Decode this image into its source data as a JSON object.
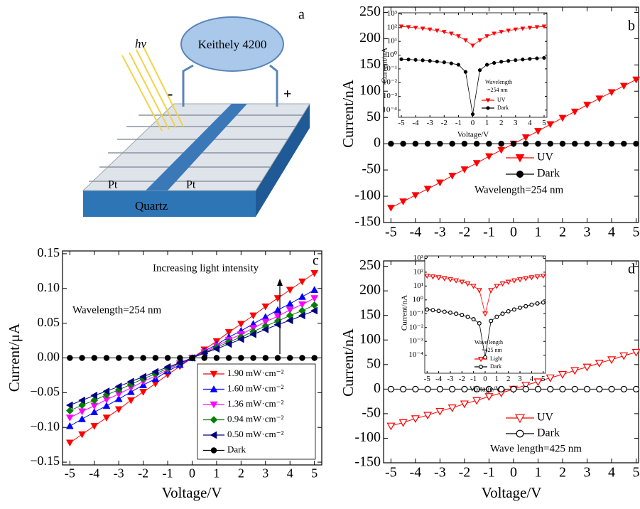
{
  "schematic": {
    "panel_label": "a",
    "light": "hν",
    "instrument": "Keithely 4200",
    "minus": "-",
    "plus": "+",
    "electrode_left": "Pt",
    "electrode_right": "Pt",
    "substrate": "Quartz"
  },
  "chart_data": [
    {
      "type": "line",
      "panel_label": "b",
      "ylabel": "Current/nA",
      "x": [
        -5,
        -4.5,
        -4,
        -3.5,
        -3,
        -2.5,
        -2,
        -1.5,
        -1,
        -0.5,
        0,
        0.5,
        1,
        1.5,
        2,
        2.5,
        3,
        3.5,
        4,
        4.5,
        5
      ],
      "xlim": [
        -5.3,
        5.1
      ],
      "xticks": [
        -5,
        -4,
        -3,
        -2,
        -1,
        0,
        1,
        2,
        3,
        4,
        5
      ],
      "ylim": [
        -150,
        260
      ],
      "yticks": [
        -150,
        -100,
        -50,
        0,
        50,
        100,
        150,
        200,
        250
      ],
      "annotations": [
        "Wavelength=254 nm"
      ],
      "series": [
        {
          "name": "UV",
          "color": "#ff0000",
          "marker": "triangle-down",
          "values": [
            -122,
            -110,
            -98,
            -86,
            -74,
            -61,
            -49,
            -37,
            -24,
            -12,
            0,
            12,
            24,
            37,
            49,
            61,
            74,
            86,
            98,
            110,
            122
          ]
        },
        {
          "name": "Dark",
          "color": "#000000",
          "marker": "circle",
          "values": [
            0,
            0,
            0,
            0,
            0,
            0,
            0,
            0,
            0,
            0,
            0,
            0,
            0,
            0,
            0,
            0,
            0,
            0,
            0,
            0,
            0
          ]
        }
      ]
    },
    {
      "type": "line",
      "xlabel": "Voltage/V",
      "ylabel": "Current/nA",
      "log_y": true,
      "x": [
        -5,
        -4.5,
        -4,
        -3.5,
        -3,
        -2.5,
        -2,
        -1.5,
        -1,
        -0.5,
        0,
        0.5,
        1,
        1.5,
        2,
        2.5,
        3,
        3.5,
        4,
        4.5,
        5
      ],
      "xlim": [
        -5.2,
        5.2
      ],
      "xticks": [
        -5,
        -4,
        -3,
        -2,
        -1,
        0,
        1,
        2,
        3,
        4,
        5
      ],
      "ylim": [
        3e-05,
        1200
      ],
      "yticks": [
        {
          "value": 0.0001,
          "label": "10⁻⁴"
        },
        {
          "value": 0.001,
          "label": "10⁻³"
        },
        {
          "value": 0.01,
          "label": "10⁻²"
        },
        {
          "value": 0.1,
          "label": "10⁻¹"
        },
        {
          "value": 1,
          "label": "10⁰"
        },
        {
          "value": 10,
          "label": "10¹"
        },
        {
          "value": 100,
          "label": "10²"
        },
        {
          "value": 1000,
          "label": "10³"
        }
      ],
      "annotations": [
        "Wavelength",
        "=254 nm"
      ],
      "series": [
        {
          "name": "UV",
          "color": "#ff0000",
          "marker": "triangle-down",
          "values": [
            122,
            110,
            98,
            86,
            74,
            61,
            49,
            37,
            24,
            12,
            5,
            12,
            24,
            37,
            49,
            61,
            74,
            86,
            98,
            110,
            122
          ]
        },
        {
          "name": "Dark",
          "color": "#000000",
          "marker": "circle",
          "values": [
            0.5,
            0.48,
            0.45,
            0.42,
            0.38,
            0.34,
            0.3,
            0.25,
            0.2,
            0.06,
            5e-05,
            0.08,
            0.2,
            0.27,
            0.33,
            0.38,
            0.43,
            0.48,
            0.53,
            0.58,
            0.63
          ]
        }
      ]
    },
    {
      "type": "line",
      "panel_label": "c",
      "xlabel": "Voltage/V",
      "ylabel": "Current/μA",
      "x": [
        -5,
        -4.5,
        -4,
        -3.5,
        -3,
        -2.5,
        -2,
        -1.5,
        -1,
        -0.5,
        0,
        0.5,
        1,
        1.5,
        2,
        2.5,
        3,
        3.5,
        4,
        4.5,
        5
      ],
      "xlim": [
        -5.3,
        5.3
      ],
      "xticks": [
        -5,
        -4,
        -3,
        -2,
        -1,
        0,
        1,
        2,
        3,
        4,
        5
      ],
      "ylim": [
        -0.154,
        0.154
      ],
      "yticks": [
        {
          "value": -0.15,
          "label": "−0.15"
        },
        {
          "value": -0.1,
          "label": "−0.10"
        },
        {
          "value": -0.05,
          "label": "−0.05"
        },
        {
          "value": 0,
          "label": "0.00"
        },
        {
          "value": 0.05,
          "label": "0.05"
        },
        {
          "value": 0.1,
          "label": "0.10"
        },
        {
          "value": 0.15,
          "label": "0.15"
        }
      ],
      "annotations": [
        "Increasing light intensity",
        "Wavelength=254 nm"
      ],
      "series": [
        {
          "name": "1.90 mW·cm⁻²",
          "color": "#ff0000",
          "marker": "triangle-down",
          "values": [
            -0.122,
            -0.11,
            -0.098,
            -0.086,
            -0.074,
            -0.061,
            -0.049,
            -0.037,
            -0.024,
            -0.012,
            0,
            0.012,
            0.024,
            0.037,
            0.049,
            0.061,
            0.074,
            0.086,
            0.098,
            0.11,
            0.122
          ]
        },
        {
          "name": "1.60 mW·cm⁻²",
          "color": "#0000ff",
          "marker": "triangle-up",
          "values": [
            -0.098,
            -0.088,
            -0.078,
            -0.069,
            -0.059,
            -0.049,
            -0.039,
            -0.03,
            -0.019,
            -0.01,
            0,
            0.01,
            0.019,
            0.03,
            0.039,
            0.049,
            0.059,
            0.069,
            0.078,
            0.088,
            0.098
          ]
        },
        {
          "name": "1.36 mW·cm⁻²",
          "color": "#ff00ff",
          "marker": "triangle-down",
          "values": [
            -0.086,
            -0.077,
            -0.069,
            -0.06,
            -0.052,
            -0.043,
            -0.034,
            -0.026,
            -0.017,
            -0.008,
            0,
            0.008,
            0.017,
            0.026,
            0.034,
            0.043,
            0.052,
            0.06,
            0.069,
            0.077,
            0.086
          ]
        },
        {
          "name": "0.94 mW·cm⁻²",
          "color": "#008000",
          "marker": "diamond",
          "values": [
            -0.076,
            -0.068,
            -0.061,
            -0.053,
            -0.046,
            -0.038,
            -0.03,
            -0.023,
            -0.015,
            -0.007,
            0,
            0.007,
            0.015,
            0.023,
            0.03,
            0.038,
            0.046,
            0.053,
            0.061,
            0.068,
            0.076
          ]
        },
        {
          "name": "0.50 mW·cm⁻²",
          "color": "#000080",
          "marker": "triangle-left",
          "values": [
            -0.068,
            -0.061,
            -0.054,
            -0.048,
            -0.041,
            -0.034,
            -0.027,
            -0.02,
            -0.013,
            -0.007,
            0,
            0.007,
            0.013,
            0.02,
            0.027,
            0.034,
            0.041,
            0.048,
            0.054,
            0.061,
            0.068
          ]
        },
        {
          "name": "Dark",
          "color": "#000000",
          "marker": "circle",
          "values": [
            0,
            0,
            0,
            0,
            0,
            0,
            0,
            0,
            0,
            0,
            0,
            0,
            0,
            0,
            0,
            0,
            0,
            0,
            0,
            0,
            0
          ]
        }
      ]
    },
    {
      "type": "line",
      "panel_label": "d",
      "xlabel": "Voltage/V",
      "ylabel": "Current/nA",
      "x": [
        -5,
        -4.5,
        -4,
        -3.5,
        -3,
        -2.5,
        -2,
        -1.5,
        -1,
        -0.5,
        0,
        0.5,
        1,
        1.5,
        2,
        2.5,
        3,
        3.5,
        4,
        4.5,
        5
      ],
      "xlim": [
        -5.3,
        5.1
      ],
      "xticks": [
        -5,
        -4,
        -3,
        -2,
        -1,
        0,
        1,
        2,
        3,
        4,
        5
      ],
      "ylim": [
        -150,
        261
      ],
      "yticks": [
        -150,
        -100,
        -50,
        0,
        50,
        100,
        150,
        200,
        250
      ],
      "annotations": [
        "Wave length=425 nm"
      ],
      "series": [
        {
          "name": "UV",
          "color": "#ff0000",
          "marker": "triangle-down-open",
          "values": [
            -75,
            -68,
            -60,
            -53,
            -45,
            -38,
            -30,
            -23,
            -15,
            -8,
            0,
            8,
            15,
            23,
            30,
            38,
            45,
            53,
            60,
            68,
            75
          ]
        },
        {
          "name": "Dark",
          "color": "#000000",
          "marker": "circle-open",
          "values": [
            0,
            0,
            0,
            0,
            0,
            0,
            0,
            0,
            0,
            0,
            0,
            0,
            0,
            0,
            0,
            0,
            0,
            0,
            0,
            0,
            0
          ]
        }
      ]
    },
    {
      "type": "line",
      "xlabel": "Voltage/V",
      "ylabel": "Current/nA",
      "log_y": true,
      "x": [
        -5,
        -4.5,
        -4,
        -3.5,
        -3,
        -2.5,
        -2,
        -1.5,
        -1,
        -0.5,
        0,
        0.5,
        1,
        1.5,
        2,
        2.5,
        3,
        3.5,
        4,
        4.5,
        5
      ],
      "xlim": [
        -5.2,
        5.2
      ],
      "xticks": [
        -5,
        -4,
        -3,
        -2,
        -1,
        0,
        1,
        2,
        3,
        4,
        5
      ],
      "ylim": [
        5e-06,
        1500
      ],
      "yticks": [
        {
          "value": 0.0001,
          "label": "10⁻⁴"
        },
        {
          "value": 0.001,
          "label": "10⁻³"
        },
        {
          "value": 0.01,
          "label": "10⁻²"
        },
        {
          "value": 0.1,
          "label": "10⁻¹"
        },
        {
          "value": 1,
          "label": "10⁰"
        },
        {
          "value": 10,
          "label": "10¹"
        },
        {
          "value": 100,
          "label": "10²"
        },
        {
          "value": 1000,
          "label": "10³"
        }
      ],
      "annotations": [
        "Wave length",
        "=425 nm"
      ],
      "series": [
        {
          "name": "Light",
          "color": "#ff0000",
          "marker": "triangle-down-open",
          "values": [
            55,
            48,
            42,
            36,
            30,
            25,
            20,
            15,
            10,
            5,
            0.1,
            5,
            10,
            15,
            20,
            25,
            30,
            36,
            42,
            48,
            55
          ]
        },
        {
          "name": "Dark",
          "color": "#000000",
          "marker": "circle-open",
          "values": [
            0.2,
            0.18,
            0.16,
            0.14,
            0.12,
            0.1,
            0.08,
            0.06,
            0.04,
            0.02,
            7e-05,
            0.03,
            0.06,
            0.1,
            0.15,
            0.2,
            0.27,
            0.35,
            0.45,
            0.55,
            0.65
          ]
        }
      ]
    }
  ]
}
